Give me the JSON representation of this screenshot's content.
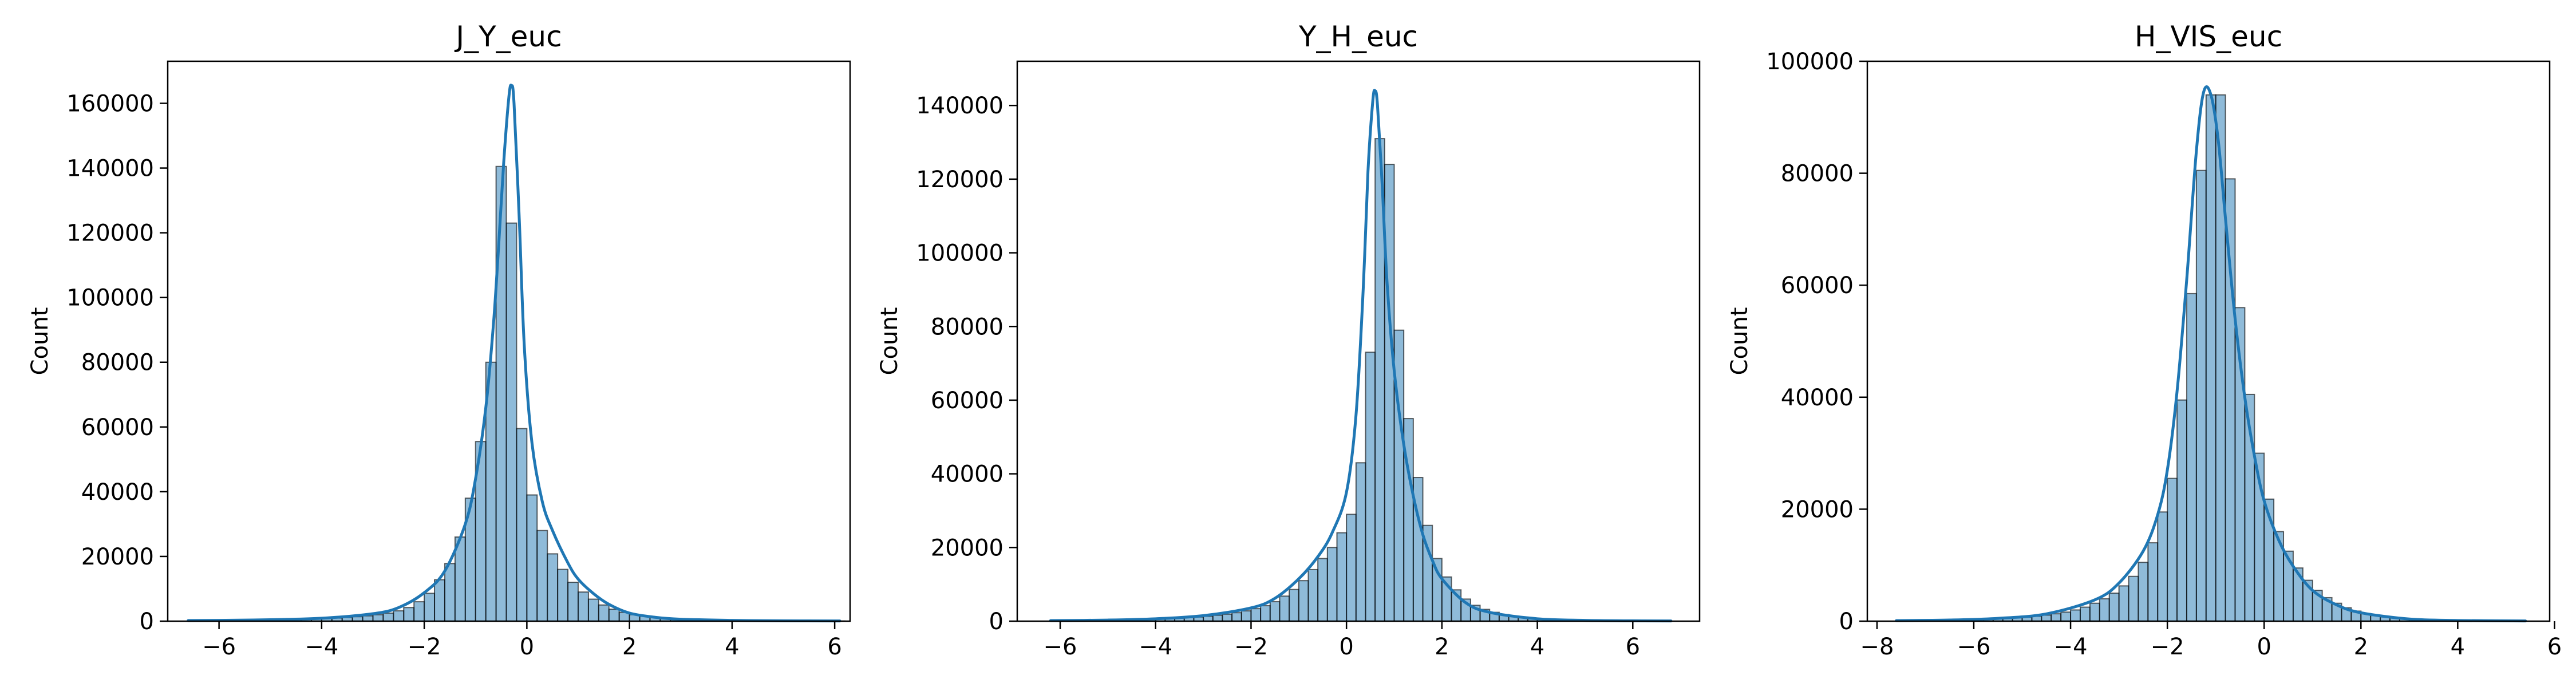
{
  "chart_data": [
    {
      "type": "histogram",
      "title": "J_Y_euc",
      "xlabel": "",
      "ylabel": "Count",
      "xlim": [
        -7.0,
        6.3
      ],
      "ylim": [
        0,
        173000
      ],
      "xticks": [
        -6,
        -4,
        -2,
        0,
        2,
        4,
        6
      ],
      "yticks": [
        0,
        20000,
        40000,
        60000,
        80000,
        100000,
        120000,
        140000,
        160000
      ],
      "bin_start": -6.6,
      "bin_width": 0.2,
      "bins": [
        {
          "x": -6.6,
          "count": 150
        },
        {
          "x": -6.4,
          "count": 160
        },
        {
          "x": -6.2,
          "count": 180
        },
        {
          "x": -6.0,
          "count": 200
        },
        {
          "x": -5.8,
          "count": 230
        },
        {
          "x": -5.6,
          "count": 260
        },
        {
          "x": -5.4,
          "count": 300
        },
        {
          "x": -5.2,
          "count": 340
        },
        {
          "x": -5.0,
          "count": 390
        },
        {
          "x": -4.8,
          "count": 450
        },
        {
          "x": -4.6,
          "count": 520
        },
        {
          "x": -4.4,
          "count": 600
        },
        {
          "x": -4.2,
          "count": 700
        },
        {
          "x": -4.0,
          "count": 820
        },
        {
          "x": -3.8,
          "count": 960
        },
        {
          "x": -3.6,
          "count": 1150
        },
        {
          "x": -3.4,
          "count": 1380
        },
        {
          "x": -3.2,
          "count": 1650
        },
        {
          "x": -3.0,
          "count": 2000
        },
        {
          "x": -2.8,
          "count": 2500
        },
        {
          "x": -2.6,
          "count": 3200
        },
        {
          "x": -2.4,
          "count": 4200
        },
        {
          "x": -2.2,
          "count": 6000
        },
        {
          "x": -2.0,
          "count": 8600
        },
        {
          "x": -1.8,
          "count": 12800
        },
        {
          "x": -1.6,
          "count": 17800
        },
        {
          "x": -1.4,
          "count": 26000
        },
        {
          "x": -1.2,
          "count": 38000
        },
        {
          "x": -1.0,
          "count": 55500
        },
        {
          "x": -0.8,
          "count": 80000
        },
        {
          "x": -0.6,
          "count": 140500
        },
        {
          "x": -0.4,
          "count": 123000
        },
        {
          "x": -0.2,
          "count": 59500
        },
        {
          "x": 0.0,
          "count": 39000
        },
        {
          "x": 0.2,
          "count": 28000
        },
        {
          "x": 0.4,
          "count": 20800
        },
        {
          "x": 0.6,
          "count": 16000
        },
        {
          "x": 0.8,
          "count": 12000
        },
        {
          "x": 1.0,
          "count": 9000
        },
        {
          "x": 1.2,
          "count": 6800
        },
        {
          "x": 1.4,
          "count": 5000
        },
        {
          "x": 1.6,
          "count": 3700
        },
        {
          "x": 1.8,
          "count": 2700
        },
        {
          "x": 2.0,
          "count": 2000
        },
        {
          "x": 2.2,
          "count": 1500
        },
        {
          "x": 2.4,
          "count": 1100
        },
        {
          "x": 2.6,
          "count": 850
        },
        {
          "x": 2.8,
          "count": 650
        },
        {
          "x": 3.0,
          "count": 500
        },
        {
          "x": 3.2,
          "count": 400
        },
        {
          "x": 3.4,
          "count": 320
        },
        {
          "x": 3.6,
          "count": 260
        },
        {
          "x": 3.8,
          "count": 210
        },
        {
          "x": 4.0,
          "count": 170
        },
        {
          "x": 4.2,
          "count": 140
        },
        {
          "x": 4.4,
          "count": 120
        },
        {
          "x": 4.6,
          "count": 100
        },
        {
          "x": 4.8,
          "count": 90
        },
        {
          "x": 5.0,
          "count": 80
        },
        {
          "x": 5.2,
          "count": 70
        },
        {
          "x": 5.4,
          "count": 60
        },
        {
          "x": 5.6,
          "count": 55
        },
        {
          "x": 5.8,
          "count": 50
        },
        {
          "x": 6.0,
          "count": 45
        }
      ],
      "kde": {
        "x": [
          -6.6,
          -6.0,
          -5.0,
          -4.0,
          -3.0,
          -2.5,
          -2.0,
          -1.6,
          -1.2,
          -1.0,
          -0.8,
          -0.65,
          -0.55,
          -0.45,
          -0.35,
          -0.3,
          -0.25,
          -0.15,
          -0.05,
          0.1,
          0.3,
          0.5,
          0.8,
          1.0,
          1.3,
          1.6,
          2.0,
          2.5,
          3.0,
          4.0,
          5.0,
          6.1
        ],
        "y": [
          200,
          250,
          450,
          900,
          2300,
          4200,
          8800,
          15500,
          30000,
          44000,
          66000,
          92000,
          116000,
          142000,
          162000,
          165500,
          160000,
          125000,
          85000,
          55000,
          37000,
          28000,
          18000,
          13000,
          8500,
          5200,
          2500,
          1200,
          600,
          250,
          120,
          60
        ]
      }
    },
    {
      "type": "histogram",
      "title": "Y_H_euc",
      "xlabel": "",
      "ylabel": "Count",
      "xlim": [
        -6.9,
        7.4
      ],
      "ylim": [
        0,
        152000
      ],
      "xticks": [
        -6,
        -4,
        -2,
        0,
        2,
        4,
        6
      ],
      "yticks": [
        0,
        20000,
        40000,
        60000,
        80000,
        100000,
        120000,
        140000
      ],
      "bin_start": -6.2,
      "bin_width": 0.2,
      "bins": [
        {
          "x": -6.2,
          "count": 140
        },
        {
          "x": -6.0,
          "count": 150
        },
        {
          "x": -5.8,
          "count": 170
        },
        {
          "x": -5.6,
          "count": 190
        },
        {
          "x": -5.4,
          "count": 220
        },
        {
          "x": -5.2,
          "count": 250
        },
        {
          "x": -5.0,
          "count": 290
        },
        {
          "x": -4.8,
          "count": 330
        },
        {
          "x": -4.6,
          "count": 380
        },
        {
          "x": -4.4,
          "count": 440
        },
        {
          "x": -4.2,
          "count": 510
        },
        {
          "x": -4.0,
          "count": 600
        },
        {
          "x": -3.8,
          "count": 700
        },
        {
          "x": -3.6,
          "count": 820
        },
        {
          "x": -3.4,
          "count": 960
        },
        {
          "x": -3.2,
          "count": 1130
        },
        {
          "x": -3.0,
          "count": 1330
        },
        {
          "x": -2.8,
          "count": 1600
        },
        {
          "x": -2.6,
          "count": 1900
        },
        {
          "x": -2.4,
          "count": 2300
        },
        {
          "x": -2.2,
          "count": 2800
        },
        {
          "x": -2.0,
          "count": 3400
        },
        {
          "x": -1.8,
          "count": 4200
        },
        {
          "x": -1.6,
          "count": 5300
        },
        {
          "x": -1.4,
          "count": 6800
        },
        {
          "x": -1.2,
          "count": 8600
        },
        {
          "x": -1.0,
          "count": 11000
        },
        {
          "x": -0.8,
          "count": 14000
        },
        {
          "x": -0.6,
          "count": 17000
        },
        {
          "x": -0.4,
          "count": 20000
        },
        {
          "x": -0.2,
          "count": 24000
        },
        {
          "x": 0.0,
          "count": 29000
        },
        {
          "x": 0.2,
          "count": 43000
        },
        {
          "x": 0.4,
          "count": 73000
        },
        {
          "x": 0.6,
          "count": 131000
        },
        {
          "x": 0.8,
          "count": 124000
        },
        {
          "x": 1.0,
          "count": 79000
        },
        {
          "x": 1.2,
          "count": 55000
        },
        {
          "x": 1.4,
          "count": 39000
        },
        {
          "x": 1.6,
          "count": 26000
        },
        {
          "x": 1.8,
          "count": 17000
        },
        {
          "x": 2.0,
          "count": 12000
        },
        {
          "x": 2.2,
          "count": 8500
        },
        {
          "x": 2.4,
          "count": 6000
        },
        {
          "x": 2.6,
          "count": 4300
        },
        {
          "x": 2.8,
          "count": 3200
        },
        {
          "x": 3.0,
          "count": 2400
        },
        {
          "x": 3.2,
          "count": 1800
        },
        {
          "x": 3.4,
          "count": 1350
        },
        {
          "x": 3.6,
          "count": 1000
        },
        {
          "x": 3.8,
          "count": 760
        },
        {
          "x": 4.0,
          "count": 580
        },
        {
          "x": 4.2,
          "count": 450
        },
        {
          "x": 4.4,
          "count": 350
        },
        {
          "x": 4.6,
          "count": 280
        },
        {
          "x": 4.8,
          "count": 220
        },
        {
          "x": 5.0,
          "count": 180
        },
        {
          "x": 5.2,
          "count": 150
        },
        {
          "x": 5.4,
          "count": 120
        },
        {
          "x": 5.6,
          "count": 100
        },
        {
          "x": 5.8,
          "count": 85
        },
        {
          "x": 6.0,
          "count": 70
        },
        {
          "x": 6.2,
          "count": 60
        },
        {
          "x": 6.4,
          "count": 50
        },
        {
          "x": 6.6,
          "count": 45
        }
      ],
      "kde": {
        "x": [
          -6.2,
          -5.0,
          -4.0,
          -3.0,
          -2.0,
          -1.5,
          -1.0,
          -0.6,
          -0.3,
          0.0,
          0.2,
          0.35,
          0.45,
          0.55,
          0.6,
          0.65,
          0.75,
          0.85,
          1.0,
          1.2,
          1.4,
          1.6,
          1.8,
          2.0,
          2.5,
          3.0,
          4.0,
          5.0,
          6.0,
          6.8
        ],
        "y": [
          150,
          300,
          650,
          1500,
          3600,
          6200,
          11500,
          17500,
          24000,
          35000,
          56000,
          90000,
          122000,
          141000,
          144000,
          140000,
          118000,
          92000,
          68000,
          48000,
          34000,
          23500,
          16500,
          11500,
          5000,
          2400,
          650,
          220,
          90,
          50
        ]
      }
    },
    {
      "type": "histogram",
      "title": "H_VIS_euc",
      "xlabel": "",
      "ylabel": "Count",
      "xlim": [
        -8.2,
        5.9
      ],
      "ylim": [
        0,
        100000
      ],
      "xticks": [
        -8,
        -6,
        -4,
        -2,
        0,
        2,
        4,
        6
      ],
      "yticks": [
        0,
        20000,
        40000,
        60000,
        80000,
        100000
      ],
      "bin_start": -7.6,
      "bin_width": 0.2,
      "bins": [
        {
          "x": -7.6,
          "count": 80
        },
        {
          "x": -7.4,
          "count": 90
        },
        {
          "x": -7.2,
          "count": 100
        },
        {
          "x": -7.0,
          "count": 120
        },
        {
          "x": -6.8,
          "count": 140
        },
        {
          "x": -6.6,
          "count": 170
        },
        {
          "x": -6.4,
          "count": 200
        },
        {
          "x": -6.2,
          "count": 240
        },
        {
          "x": -6.0,
          "count": 290
        },
        {
          "x": -5.8,
          "count": 350
        },
        {
          "x": -5.6,
          "count": 420
        },
        {
          "x": -5.4,
          "count": 500
        },
        {
          "x": -5.2,
          "count": 600
        },
        {
          "x": -5.0,
          "count": 720
        },
        {
          "x": -4.8,
          "count": 880
        },
        {
          "x": -4.6,
          "count": 1080
        },
        {
          "x": -4.4,
          "count": 1320
        },
        {
          "x": -4.2,
          "count": 1620
        },
        {
          "x": -4.0,
          "count": 2000
        },
        {
          "x": -3.8,
          "count": 2500
        },
        {
          "x": -3.6,
          "count": 3200
        },
        {
          "x": -3.4,
          "count": 4000
        },
        {
          "x": -3.2,
          "count": 5000
        },
        {
          "x": -3.0,
          "count": 6300
        },
        {
          "x": -2.8,
          "count": 8000
        },
        {
          "x": -2.6,
          "count": 10500
        },
        {
          "x": -2.4,
          "count": 14000
        },
        {
          "x": -2.2,
          "count": 19500
        },
        {
          "x": -2.0,
          "count": 25500
        },
        {
          "x": -1.8,
          "count": 39500
        },
        {
          "x": -1.6,
          "count": 58500
        },
        {
          "x": -1.4,
          "count": 80500
        },
        {
          "x": -1.2,
          "count": 94000
        },
        {
          "x": -1.0,
          "count": 94000
        },
        {
          "x": -0.8,
          "count": 79000
        },
        {
          "x": -0.6,
          "count": 56000
        },
        {
          "x": -0.4,
          "count": 40500
        },
        {
          "x": -0.2,
          "count": 30000
        },
        {
          "x": 0.0,
          "count": 21800
        },
        {
          "x": 0.2,
          "count": 16000
        },
        {
          "x": 0.4,
          "count": 12500
        },
        {
          "x": 0.6,
          "count": 9500
        },
        {
          "x": 0.8,
          "count": 7300
        },
        {
          "x": 1.0,
          "count": 5500
        },
        {
          "x": 1.2,
          "count": 4200
        },
        {
          "x": 1.4,
          "count": 3200
        },
        {
          "x": 1.6,
          "count": 2400
        },
        {
          "x": 1.8,
          "count": 1800
        },
        {
          "x": 2.0,
          "count": 1350
        },
        {
          "x": 2.2,
          "count": 1000
        },
        {
          "x": 2.4,
          "count": 750
        },
        {
          "x": 2.6,
          "count": 560
        },
        {
          "x": 2.8,
          "count": 420
        },
        {
          "x": 3.0,
          "count": 320
        },
        {
          "x": 3.2,
          "count": 250
        },
        {
          "x": 3.4,
          "count": 200
        },
        {
          "x": 3.6,
          "count": 160
        },
        {
          "x": 3.8,
          "count": 130
        },
        {
          "x": 4.0,
          "count": 110
        },
        {
          "x": 4.2,
          "count": 90
        },
        {
          "x": 4.4,
          "count": 75
        },
        {
          "x": 4.6,
          "count": 62
        },
        {
          "x": 4.8,
          "count": 52
        },
        {
          "x": 5.0,
          "count": 44
        },
        {
          "x": 5.2,
          "count": 38
        }
      ],
      "kde": {
        "x": [
          -7.6,
          -6.5,
          -5.5,
          -4.5,
          -3.5,
          -3.0,
          -2.5,
          -2.2,
          -2.0,
          -1.8,
          -1.6,
          -1.4,
          -1.25,
          -1.1,
          -0.95,
          -0.8,
          -0.6,
          -0.4,
          -0.2,
          0.0,
          0.3,
          0.6,
          1.0,
          1.5,
          2.0,
          3.0,
          4.0,
          5.4
        ],
        "y": [
          100,
          200,
          500,
          1300,
          3800,
          6800,
          12500,
          19000,
          27000,
          41000,
          61000,
          84000,
          94500,
          94000,
          86000,
          72000,
          54000,
          40000,
          29500,
          21500,
          14500,
          9800,
          5500,
          2900,
          1500,
          380,
          120,
          40
        ]
      }
    }
  ]
}
